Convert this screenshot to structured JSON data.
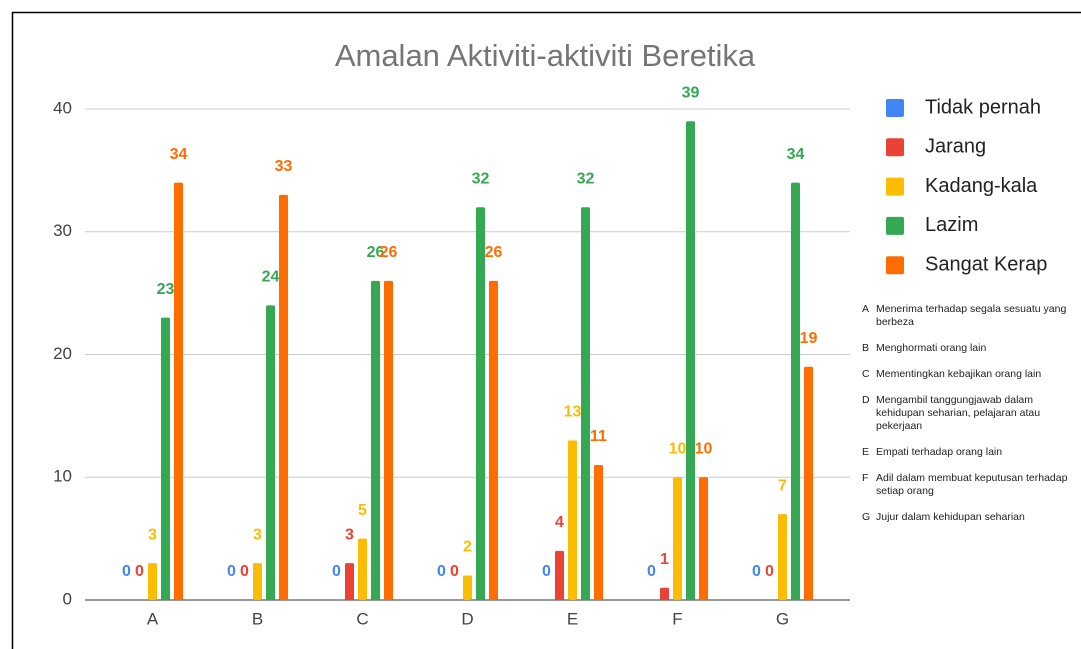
{
  "chart_data": {
    "type": "bar",
    "title": "Amalan Aktiviti-aktiviti Beretika",
    "categories": [
      "A",
      "B",
      "C",
      "D",
      "E",
      "F",
      "G"
    ],
    "series": [
      {
        "name": "Tidak pernah",
        "color": "#4285f4",
        "values": [
          0,
          0,
          0,
          0,
          0,
          0,
          0
        ]
      },
      {
        "name": "Jarang",
        "color": "#ea4335",
        "values": [
          0,
          0,
          3,
          0,
          4,
          1,
          0
        ]
      },
      {
        "name": "Kadang-kala",
        "color": "#fbbc04",
        "values": [
          3,
          3,
          5,
          2,
          13,
          10,
          7
        ]
      },
      {
        "name": "Lazim",
        "color": "#34a853",
        "values": [
          23,
          24,
          26,
          32,
          32,
          39,
          34
        ]
      },
      {
        "name": "Sangat Kerap",
        "color": "#ff6d01",
        "values": [
          34,
          33,
          26,
          26,
          11,
          10,
          19
        ]
      }
    ],
    "ylim": [
      0,
      40
    ],
    "yticks": [
      0,
      10,
      20,
      30,
      40
    ],
    "grid": true,
    "legend": "right",
    "notes": [
      [
        "A",
        "Menerima terhadap segala sesuatu yang berbeza"
      ],
      [
        "B",
        "Menghormati orang lain"
      ],
      [
        "C",
        "Mementingkan kebajikan orang lain"
      ],
      [
        "D",
        "Mengambil tanggungjawab dalam kehidupan seharian, pelajaran atau pekerjaan"
      ],
      [
        "E",
        "Empati terhadap orang lain"
      ],
      [
        "F",
        "Adil dalam membuat keputusan terhadap setiap orang"
      ],
      [
        "G",
        "Jujur dalam kehidupan seharian"
      ]
    ]
  }
}
